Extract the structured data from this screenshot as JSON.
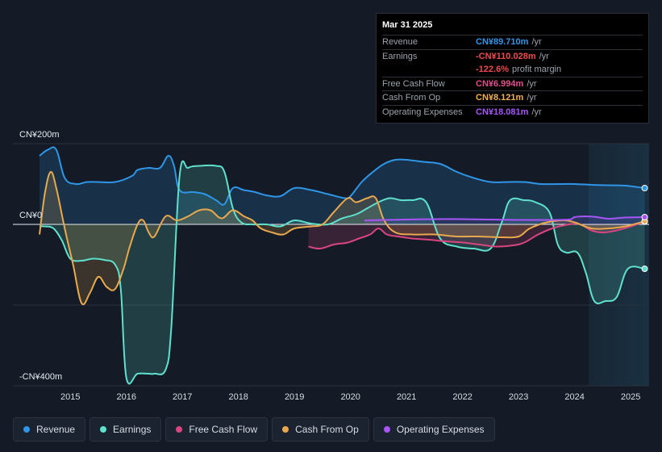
{
  "tooltip": {
    "date": "Mar 31 2025",
    "rows": [
      {
        "label": "Revenue",
        "value": "CN¥89.710m",
        "unit": "/yr",
        "color": "#2f95e6"
      },
      {
        "label": "Earnings",
        "value": "-CN¥110.028m",
        "unit": "/yr",
        "color": "#f04a4a"
      },
      {
        "label": "",
        "value": "-122.6%",
        "unit": "profit margin",
        "color": "#f04a4a"
      },
      {
        "label": "Free Cash Flow",
        "value": "CN¥6.994m",
        "unit": "/yr",
        "color": "#e0508e"
      },
      {
        "label": "Cash From Op",
        "value": "CN¥8.121m",
        "unit": "/yr",
        "color": "#f0b050"
      },
      {
        "label": "Operating Expenses",
        "value": "CN¥18.081m",
        "unit": "/yr",
        "color": "#a855f7"
      }
    ]
  },
  "legend": [
    {
      "label": "Revenue",
      "color": "#2f95e6"
    },
    {
      "label": "Earnings",
      "color": "#5fe0cc"
    },
    {
      "label": "Free Cash Flow",
      "color": "#d8457f"
    },
    {
      "label": "Cash From Op",
      "color": "#e8a94e"
    },
    {
      "label": "Operating Expenses",
      "color": "#a855f7"
    }
  ],
  "chart_data": {
    "type": "area",
    "title": "",
    "y_axis_labels": {
      "top": "CN¥200m",
      "zero": "CN¥0",
      "bottom": "-CN¥400m"
    },
    "ylim": [
      -400,
      200
    ],
    "xlim": [
      2014.45,
      2025.3
    ],
    "x_ticks": [
      2015,
      2016,
      2017,
      2018,
      2019,
      2020,
      2021,
      2022,
      2023,
      2024,
      2025
    ],
    "forecast_shade_from": 2024.25,
    "series": [
      {
        "name": "Revenue",
        "color": "#2f95e6",
        "points": [
          [
            2014.45,
            170
          ],
          [
            2014.6,
            185
          ],
          [
            2014.75,
            185
          ],
          [
            2014.9,
            115
          ],
          [
            2015.1,
            100
          ],
          [
            2015.3,
            105
          ],
          [
            2015.5,
            105
          ],
          [
            2015.8,
            105
          ],
          [
            2016.1,
            120
          ],
          [
            2016.2,
            135
          ],
          [
            2016.4,
            140
          ],
          [
            2016.6,
            140
          ],
          [
            2016.75,
            170
          ],
          [
            2016.85,
            145
          ],
          [
            2016.95,
            85
          ],
          [
            2017.2,
            80
          ],
          [
            2017.4,
            75
          ],
          [
            2017.6,
            60
          ],
          [
            2017.75,
            50
          ],
          [
            2017.9,
            90
          ],
          [
            2018.1,
            85
          ],
          [
            2018.3,
            80
          ],
          [
            2018.5,
            72
          ],
          [
            2018.75,
            70
          ],
          [
            2019.0,
            90
          ],
          [
            2019.3,
            85
          ],
          [
            2019.6,
            75
          ],
          [
            2019.9,
            65
          ],
          [
            2020.0,
            70
          ],
          [
            2020.2,
            105
          ],
          [
            2020.4,
            130
          ],
          [
            2020.6,
            150
          ],
          [
            2020.8,
            160
          ],
          [
            2021.0,
            160
          ],
          [
            2021.3,
            155
          ],
          [
            2021.6,
            150
          ],
          [
            2021.9,
            130
          ],
          [
            2022.2,
            115
          ],
          [
            2022.5,
            105
          ],
          [
            2022.8,
            105
          ],
          [
            2023.1,
            105
          ],
          [
            2023.4,
            100
          ],
          [
            2023.7,
            100
          ],
          [
            2024.0,
            100
          ],
          [
            2024.3,
            98
          ],
          [
            2024.6,
            97
          ],
          [
            2024.9,
            96
          ],
          [
            2025.25,
            90
          ]
        ]
      },
      {
        "name": "Earnings",
        "color": "#5fe0cc",
        "points": [
          [
            2014.45,
            -5
          ],
          [
            2014.55,
            -5
          ],
          [
            2014.7,
            -10
          ],
          [
            2014.85,
            -40
          ],
          [
            2015.0,
            -85
          ],
          [
            2015.2,
            -90
          ],
          [
            2015.4,
            -85
          ],
          [
            2015.6,
            -88
          ],
          [
            2015.8,
            -100
          ],
          [
            2015.9,
            -160
          ],
          [
            2016.0,
            -380
          ],
          [
            2016.2,
            -370
          ],
          [
            2016.4,
            -370
          ],
          [
            2016.5,
            -370
          ],
          [
            2016.7,
            -360
          ],
          [
            2016.8,
            -260
          ],
          [
            2016.95,
            120
          ],
          [
            2017.1,
            140
          ],
          [
            2017.3,
            145
          ],
          [
            2017.6,
            145
          ],
          [
            2017.75,
            130
          ],
          [
            2017.9,
            40
          ],
          [
            2018.05,
            5
          ],
          [
            2018.25,
            0
          ],
          [
            2018.5,
            0
          ],
          [
            2018.75,
            -5
          ],
          [
            2019.0,
            10
          ],
          [
            2019.3,
            2
          ],
          [
            2019.6,
            0
          ],
          [
            2019.85,
            15
          ],
          [
            2020.1,
            25
          ],
          [
            2020.3,
            40
          ],
          [
            2020.5,
            55
          ],
          [
            2020.7,
            65
          ],
          [
            2020.9,
            60
          ],
          [
            2021.1,
            60
          ],
          [
            2021.35,
            55
          ],
          [
            2021.6,
            -35
          ],
          [
            2021.9,
            -55
          ],
          [
            2022.2,
            -60
          ],
          [
            2022.5,
            -60
          ],
          [
            2022.7,
            5
          ],
          [
            2022.85,
            60
          ],
          [
            2023.1,
            60
          ],
          [
            2023.3,
            55
          ],
          [
            2023.55,
            30
          ],
          [
            2023.7,
            -50
          ],
          [
            2023.85,
            -70
          ],
          [
            2024.05,
            -70
          ],
          [
            2024.2,
            -120
          ],
          [
            2024.35,
            -190
          ],
          [
            2024.55,
            -190
          ],
          [
            2024.75,
            -180
          ],
          [
            2024.95,
            -110
          ],
          [
            2025.25,
            -110
          ]
        ]
      },
      {
        "name": "Free Cash Flow",
        "color": "#d8457f",
        "points": [
          [
            2019.25,
            -55
          ],
          [
            2019.45,
            -60
          ],
          [
            2019.7,
            -50
          ],
          [
            2019.95,
            -45
          ],
          [
            2020.15,
            -35
          ],
          [
            2020.35,
            -25
          ],
          [
            2020.5,
            -10
          ],
          [
            2020.65,
            -25
          ],
          [
            2020.85,
            -30
          ],
          [
            2021.1,
            -35
          ],
          [
            2021.4,
            -38
          ],
          [
            2021.7,
            -42
          ],
          [
            2022.0,
            -45
          ],
          [
            2022.3,
            -50
          ],
          [
            2022.6,
            -55
          ],
          [
            2022.9,
            -52
          ],
          [
            2023.1,
            -45
          ],
          [
            2023.35,
            -25
          ],
          [
            2023.6,
            -10
          ],
          [
            2023.9,
            0
          ],
          [
            2024.1,
            0
          ],
          [
            2024.3,
            -15
          ],
          [
            2024.5,
            -20
          ],
          [
            2024.75,
            -15
          ],
          [
            2025.0,
            -5
          ],
          [
            2025.25,
            7
          ]
        ]
      },
      {
        "name": "Cash From Op",
        "color": "#e8a94e",
        "points": [
          [
            2014.45,
            -25
          ],
          [
            2014.55,
            80
          ],
          [
            2014.65,
            130
          ],
          [
            2014.75,
            90
          ],
          [
            2014.9,
            -10
          ],
          [
            2015.05,
            -100
          ],
          [
            2015.2,
            -195
          ],
          [
            2015.35,
            -170
          ],
          [
            2015.5,
            -130
          ],
          [
            2015.65,
            -155
          ],
          [
            2015.8,
            -160
          ],
          [
            2015.95,
            -110
          ],
          [
            2016.05,
            -60
          ],
          [
            2016.2,
            0
          ],
          [
            2016.3,
            10
          ],
          [
            2016.4,
            -20
          ],
          [
            2016.5,
            -30
          ],
          [
            2016.7,
            20
          ],
          [
            2016.9,
            10
          ],
          [
            2017.1,
            20
          ],
          [
            2017.3,
            35
          ],
          [
            2017.5,
            35
          ],
          [
            2017.7,
            15
          ],
          [
            2017.9,
            35
          ],
          [
            2018.1,
            20
          ],
          [
            2018.25,
            10
          ],
          [
            2018.4,
            -10
          ],
          [
            2018.6,
            -20
          ],
          [
            2018.8,
            -25
          ],
          [
            2019.0,
            -10
          ],
          [
            2019.3,
            -5
          ],
          [
            2019.5,
            0
          ],
          [
            2019.7,
            30
          ],
          [
            2019.95,
            65
          ],
          [
            2020.1,
            55
          ],
          [
            2020.3,
            65
          ],
          [
            2020.45,
            65
          ],
          [
            2020.6,
            10
          ],
          [
            2020.8,
            -20
          ],
          [
            2021.1,
            -25
          ],
          [
            2021.5,
            -25
          ],
          [
            2021.9,
            -30
          ],
          [
            2022.3,
            -30
          ],
          [
            2022.7,
            -32
          ],
          [
            2023.0,
            -30
          ],
          [
            2023.2,
            -10
          ],
          [
            2023.5,
            5
          ],
          [
            2023.8,
            10
          ],
          [
            2024.0,
            5
          ],
          [
            2024.3,
            -10
          ],
          [
            2024.6,
            -10
          ],
          [
            2024.9,
            -5
          ],
          [
            2025.25,
            8
          ]
        ]
      },
      {
        "name": "Operating Expenses",
        "color": "#a855f7",
        "points": [
          [
            2020.25,
            10
          ],
          [
            2020.6,
            11
          ],
          [
            2021.0,
            12
          ],
          [
            2021.5,
            13
          ],
          [
            2022.0,
            13
          ],
          [
            2022.5,
            12
          ],
          [
            2023.0,
            11
          ],
          [
            2023.5,
            11
          ],
          [
            2023.9,
            12
          ],
          [
            2024.0,
            18
          ],
          [
            2024.2,
            20
          ],
          [
            2024.4,
            18
          ],
          [
            2024.6,
            14
          ],
          [
            2024.9,
            17
          ],
          [
            2025.25,
            18
          ]
        ]
      }
    ]
  }
}
